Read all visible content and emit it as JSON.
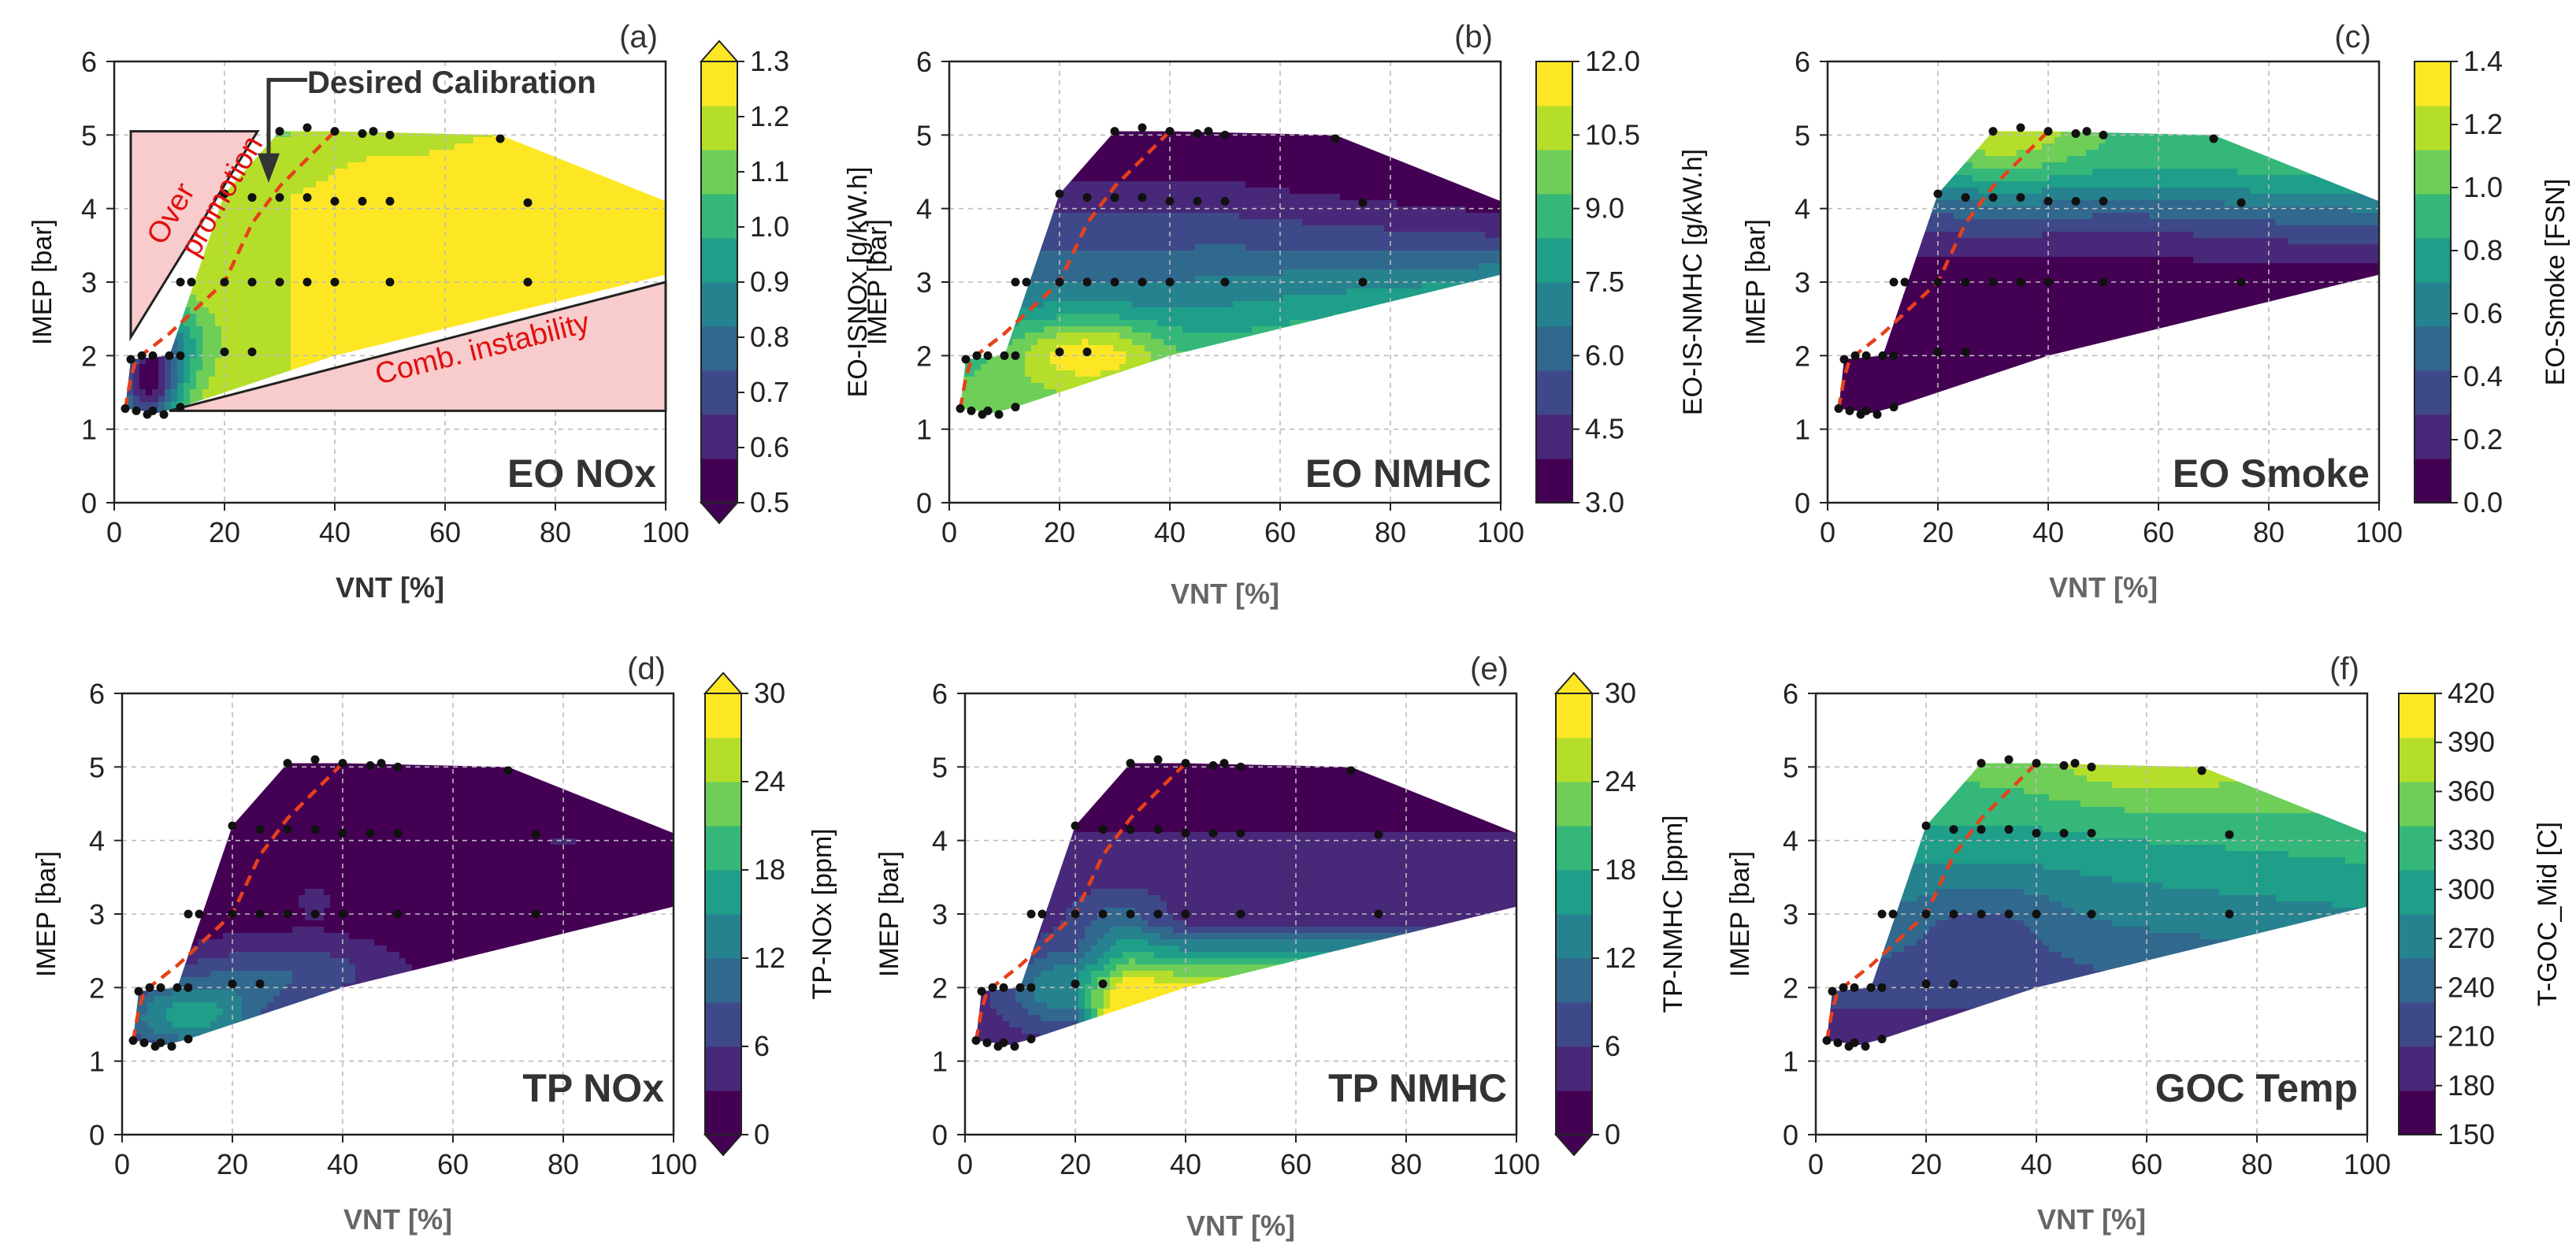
{
  "figure": {
    "colormap": [
      "#440154",
      "#482878",
      "#3e4989",
      "#31688e",
      "#26828e",
      "#1f9e89",
      "#35b779",
      "#6ece58",
      "#b5de2b",
      "#fde725"
    ]
  },
  "annotations": {
    "desired": "Desired Calibration",
    "over": "Over",
    "promotion": "promotion",
    "instability": "Comb. instability",
    "colors": {
      "red": "#e01010",
      "shade": "#f8cccc"
    }
  },
  "chart_data": [
    {
      "type": "contour",
      "title": "(a)",
      "label": "EO NOx",
      "xlabel": "VNT [%]",
      "ylabel": "IMEP [bar]",
      "xlim": [
        0,
        100
      ],
      "ylim": [
        0,
        6
      ],
      "xticks": [
        "0",
        "20",
        "40",
        "60",
        "80",
        "100"
      ],
      "yticks": [
        "0",
        "1",
        "2",
        "3",
        "4",
        "5",
        "6"
      ],
      "colorbar": {
        "label": "EO-ISNOx [g/kW.h]",
        "ticks": [
          "0.5",
          "0.6",
          "0.7",
          "0.8",
          "0.9",
          "1.0",
          "1.1",
          "1.2",
          "1.3"
        ],
        "range": [
          0.5,
          1.3
        ],
        "extend": "both"
      },
      "field": "nox"
    },
    {
      "type": "contour",
      "title": "(b)",
      "label": "EO NMHC",
      "xlabel": "VNT [%]",
      "ylabel": "IMEP [bar]",
      "xlim": [
        0,
        100
      ],
      "ylim": [
        0,
        6
      ],
      "xticks": [
        "0",
        "20",
        "40",
        "60",
        "80",
        "100"
      ],
      "yticks": [
        "0",
        "1",
        "2",
        "3",
        "4",
        "5",
        "6"
      ],
      "colorbar": {
        "label": "EO-IS-NMHC [g/kW.h]",
        "ticks": [
          "3.0",
          "4.5",
          "6.0",
          "7.5",
          "9.0",
          "10.5",
          "12.0"
        ],
        "range": [
          3.0,
          12.0
        ],
        "extend": "neither"
      },
      "field": "nmhc"
    },
    {
      "type": "contour",
      "title": "(c)",
      "label": "EO Smoke",
      "xlabel": "VNT [%]",
      "ylabel": "IMEP [bar]",
      "xlim": [
        0,
        100
      ],
      "ylim": [
        0,
        6
      ],
      "xticks": [
        "0",
        "20",
        "40",
        "60",
        "80",
        "100"
      ],
      "yticks": [
        "0",
        "1",
        "2",
        "3",
        "4",
        "5",
        "6"
      ],
      "colorbar": {
        "label": "EO-Smoke [FSN]",
        "ticks": [
          "0.0",
          "0.2",
          "0.4",
          "0.6",
          "0.8",
          "1.0",
          "1.2",
          "1.4"
        ],
        "range": [
          0.0,
          1.4
        ],
        "extend": "neither"
      },
      "field": "smoke"
    },
    {
      "type": "contour",
      "title": "(d)",
      "label": "TP NOx",
      "xlabel": "VNT [%]",
      "ylabel": "IMEP [bar]",
      "xlim": [
        0,
        100
      ],
      "ylim": [
        0,
        6
      ],
      "xticks": [
        "0",
        "20",
        "40",
        "60",
        "80",
        "100"
      ],
      "yticks": [
        "0",
        "1",
        "2",
        "3",
        "4",
        "5",
        "6"
      ],
      "colorbar": {
        "label": "TP-NOx [ppm]",
        "ticks": [
          "0",
          "6",
          "12",
          "18",
          "24",
          "30"
        ],
        "range": [
          0,
          30
        ],
        "extend": "both"
      },
      "field": "tpnox"
    },
    {
      "type": "contour",
      "title": "(e)",
      "label": "TP NMHC",
      "xlabel": "VNT [%]",
      "ylabel": "IMEP [bar]",
      "xlim": [
        0,
        100
      ],
      "ylim": [
        0,
        6
      ],
      "xticks": [
        "0",
        "20",
        "40",
        "60",
        "80",
        "100"
      ],
      "yticks": [
        "0",
        "1",
        "2",
        "3",
        "4",
        "5",
        "6"
      ],
      "colorbar": {
        "label": "TP-NMHC [ppm]",
        "ticks": [
          "0",
          "6",
          "12",
          "18",
          "24",
          "30"
        ],
        "range": [
          0,
          30
        ],
        "extend": "both"
      },
      "field": "tpnmhc"
    },
    {
      "type": "contour",
      "title": "(f)",
      "label": "GOC Temp",
      "xlabel": "VNT [%]",
      "ylabel": "IMEP [bar]",
      "xlim": [
        0,
        100
      ],
      "ylim": [
        0,
        6
      ],
      "xticks": [
        "0",
        "20",
        "40",
        "60",
        "80",
        "100"
      ],
      "yticks": [
        "0",
        "1",
        "2",
        "3",
        "4",
        "5",
        "6"
      ],
      "colorbar": {
        "label": "T-GOC_Mid [C]",
        "ticks": [
          "150",
          "180",
          "210",
          "240",
          "270",
          "300",
          "330",
          "360",
          "390",
          "420"
        ],
        "range": [
          150,
          420
        ],
        "extend": "neither"
      },
      "field": "goc"
    }
  ],
  "shared": {
    "domain_polygon": [
      [
        2,
        1.28
      ],
      [
        3,
        1.95
      ],
      [
        10,
        2.0
      ],
      [
        20,
        4.2
      ],
      [
        30,
        5.05
      ],
      [
        40,
        5.05
      ],
      [
        70,
        5.0
      ],
      [
        100,
        4.1
      ],
      [
        100,
        3.1
      ],
      [
        40,
        2.0
      ],
      [
        12,
        1.3
      ],
      [
        8,
        1.22
      ],
      [
        2,
        1.28
      ]
    ],
    "calibration_line": [
      [
        2,
        1.28
      ],
      [
        3,
        1.7
      ],
      [
        4,
        1.95
      ],
      [
        10,
        2.3
      ],
      [
        20,
        3.0
      ],
      [
        25,
        3.8
      ],
      [
        30,
        4.3
      ],
      [
        40,
        5.05
      ]
    ],
    "test_points": [
      [
        2,
        1.28
      ],
      [
        4,
        1.25
      ],
      [
        6,
        1.2
      ],
      [
        7,
        1.25
      ],
      [
        9,
        1.2
      ],
      [
        12,
        1.3
      ],
      [
        3,
        1.95
      ],
      [
        5,
        2.0
      ],
      [
        7,
        2.0
      ],
      [
        10,
        2.0
      ],
      [
        12,
        2.0
      ],
      [
        20,
        2.05
      ],
      [
        25,
        2.05
      ],
      [
        12,
        3.0
      ],
      [
        14,
        3.0
      ],
      [
        20,
        3.0
      ],
      [
        25,
        3.0
      ],
      [
        30,
        3.0
      ],
      [
        35,
        3.0
      ],
      [
        40,
        3.0
      ],
      [
        50,
        3.0
      ],
      [
        75,
        3.0
      ],
      [
        20,
        4.2
      ],
      [
        25,
        4.15
      ],
      [
        30,
        4.15
      ],
      [
        35,
        4.15
      ],
      [
        40,
        4.1
      ],
      [
        45,
        4.1
      ],
      [
        50,
        4.1
      ],
      [
        75,
        4.08
      ],
      [
        30,
        5.05
      ],
      [
        35,
        5.1
      ],
      [
        40,
        5.05
      ],
      [
        45,
        5.02
      ],
      [
        47,
        5.05
      ],
      [
        50,
        5.0
      ],
      [
        70,
        4.95
      ]
    ]
  }
}
